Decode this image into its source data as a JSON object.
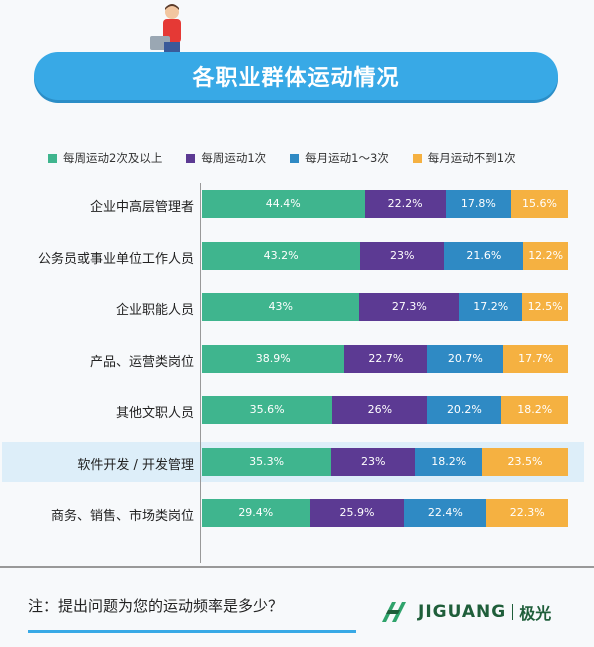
{
  "title": "各职业群体运动情况",
  "note": "注：提出问题为您的运动频率是多少？",
  "brand": {
    "name": "JIGUANG",
    "cn": "极光"
  },
  "colors": {
    "s1": "#3fb58e",
    "s2": "#5c3a93",
    "s3": "#2f8ac4",
    "s4": "#f5b141",
    "banner": "#38a9e6",
    "highlight": "#ddeef9"
  },
  "chart_data": {
    "type": "bar",
    "stacked": true,
    "orientation": "horizontal",
    "title": "各职业群体运动情况",
    "categories": [
      "企业中高层管理者",
      "公务员或事业单位工作人员",
      "企业职能人员",
      "产品、运营类岗位",
      "其他文职人员",
      "软件开发 / 开发管理",
      "商务、销售、市场类岗位"
    ],
    "series": [
      {
        "name": "每周运动2次及以上",
        "values": [
          44.4,
          43.2,
          43,
          38.9,
          35.6,
          35.3,
          29.4
        ],
        "labels": [
          "44.4%",
          "43.2%",
          "43%",
          "38.9%",
          "35.6%",
          "35.3%",
          "29.4%"
        ]
      },
      {
        "name": "每周运动1次",
        "values": [
          22.2,
          23,
          27.3,
          22.7,
          26,
          23,
          25.9
        ],
        "labels": [
          "22.2%",
          "23%",
          "27.3%",
          "22.7%",
          "26%",
          "23%",
          "25.9%"
        ]
      },
      {
        "name": "每月运动1～3次",
        "values": [
          17.8,
          21.6,
          17.2,
          20.7,
          20.2,
          18.2,
          22.4
        ],
        "labels": [
          "17.8%",
          "21.6%",
          "17.2%",
          "20.7%",
          "20.2%",
          "18.2%",
          "22.4%"
        ]
      },
      {
        "name": "每月运动不到1次",
        "values": [
          15.6,
          12.2,
          12.5,
          17.7,
          18.2,
          23.5,
          22.3
        ],
        "labels": [
          "15.6%",
          "12.2%",
          "12.5%",
          "17.7%",
          "18.2%",
          "23.5%",
          "22.3%"
        ]
      }
    ],
    "highlighted_category": "软件开发 / 开发管理",
    "legend_position": "top",
    "grid": false
  }
}
